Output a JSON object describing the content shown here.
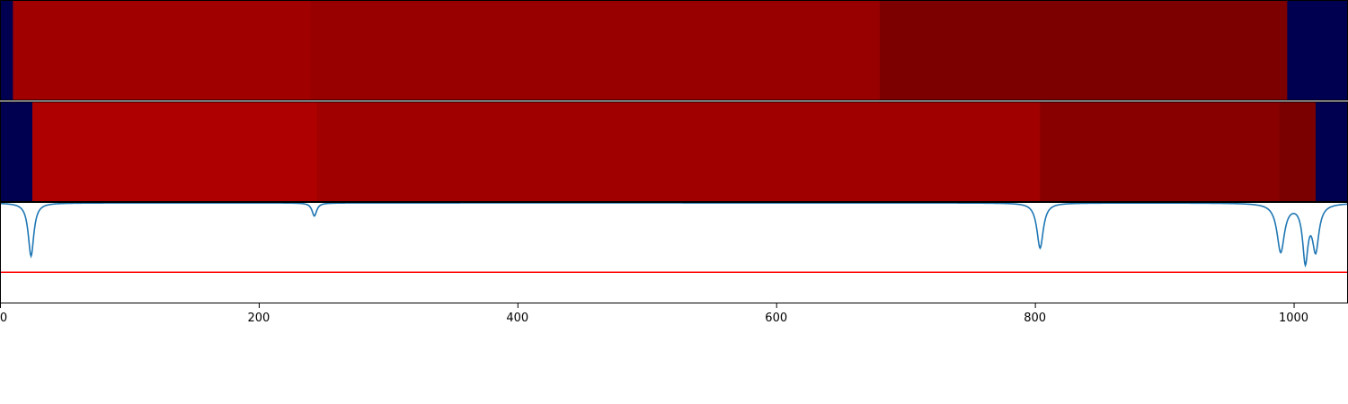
{
  "chart_data": {
    "type": "heatmap",
    "xlim": [
      0,
      1042
    ],
    "x_ticks": [
      {
        "value": 0,
        "label": "0"
      },
      {
        "value": 200,
        "label": "200"
      },
      {
        "value": 400,
        "label": "400"
      },
      {
        "value": 600,
        "label": "600"
      },
      {
        "value": 800,
        "label": "800"
      },
      {
        "value": 1000,
        "label": "1000"
      }
    ],
    "heatmap_rows": [
      {
        "segments": [
          {
            "start": 0,
            "end": 10,
            "color": "#000050"
          },
          {
            "start": 10,
            "end": 240,
            "color": "#a00000"
          },
          {
            "start": 240,
            "end": 680,
            "color": "#980000"
          },
          {
            "start": 680,
            "end": 995,
            "color": "#7c0000"
          },
          {
            "start": 995,
            "end": 1042,
            "color": "#000050"
          }
        ]
      },
      {
        "segments": [
          {
            "start": 0,
            "end": 25,
            "color": "#000050"
          },
          {
            "start": 25,
            "end": 245,
            "color": "#ae0000"
          },
          {
            "start": 245,
            "end": 804,
            "color": "#a00000"
          },
          {
            "start": 804,
            "end": 989,
            "color": "#880000"
          },
          {
            "start": 989,
            "end": 1017,
            "color": "#7a0000"
          },
          {
            "start": 1017,
            "end": 1042,
            "color": "#000050"
          }
        ]
      }
    ],
    "line_panel": {
      "ylim": [
        0,
        1
      ],
      "line_color": "#1f77b4",
      "threshold": 0.31,
      "threshold_color": "#ff0000",
      "dips": [
        {
          "center": 24,
          "depth": 0.53,
          "width": 2.6
        },
        {
          "center": 243,
          "depth": 0.13,
          "width": 2.2
        },
        {
          "center": 804,
          "depth": 0.45,
          "width": 3.0
        },
        {
          "center": 990,
          "depth": 0.48,
          "width": 3.5
        },
        {
          "center": 1009,
          "depth": 0.55,
          "width": 2.5
        },
        {
          "center": 1017,
          "depth": 0.45,
          "width": 3.0
        }
      ]
    }
  }
}
